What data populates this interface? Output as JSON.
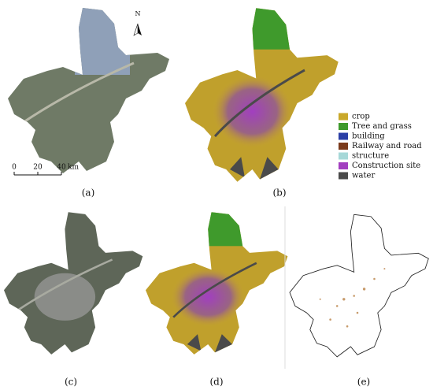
{
  "panels": [
    "(a)",
    "(b)",
    "(c)",
    "(d)",
    "(e)"
  ],
  "north": "N",
  "scale": {
    "ticks": [
      "0",
      "20",
      "40"
    ],
    "unit": "km"
  },
  "legend": [
    {
      "name": "crop",
      "color": "#c9a82a"
    },
    {
      "name": "Tree and grass",
      "color": "#3f9a2c"
    },
    {
      "name": "building",
      "color": "#2b3fa6"
    },
    {
      "name": "Railway and road",
      "color": "#7a3a1c"
    },
    {
      "name": "structure",
      "color": "#a6d8d8"
    },
    {
      "name": "Construction site",
      "color": "#a23fc0"
    },
    {
      "name": "water",
      "color": "#4a4a4a"
    }
  ]
}
